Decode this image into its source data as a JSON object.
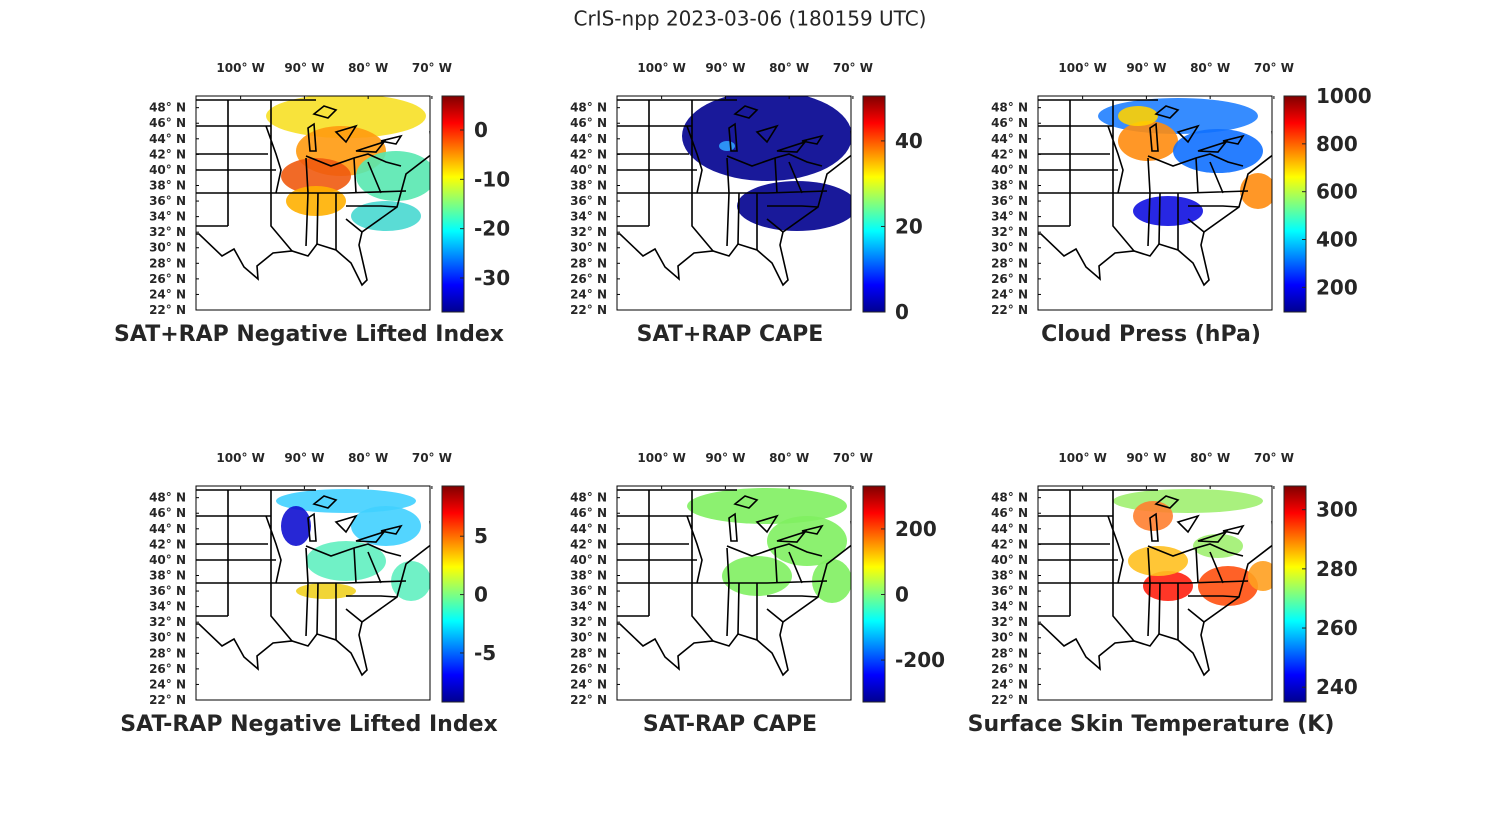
{
  "title": "CrIS-npp 2023-03-06 (180159 UTC)",
  "map": {
    "xlim": [
      -107,
      -70.3
    ],
    "ylim": [
      22,
      49.5
    ],
    "lon_ticks": [
      {
        "value": -100,
        "label": "100° W"
      },
      {
        "value": -90,
        "label": "90° W"
      },
      {
        "value": -80,
        "label": "80° W"
      },
      {
        "value": -70,
        "label": "70° W"
      }
    ],
    "lat_ticks": [
      {
        "value": 48,
        "label": "48° N"
      },
      {
        "value": 46,
        "label": "46° N"
      },
      {
        "value": 44,
        "label": "44° N"
      },
      {
        "value": 42,
        "label": "42° N"
      },
      {
        "value": 40,
        "label": "40° N"
      },
      {
        "value": 38,
        "label": "38° N"
      },
      {
        "value": 36,
        "label": "36° N"
      },
      {
        "value": 34,
        "label": "34° N"
      },
      {
        "value": 32,
        "label": "32° N"
      },
      {
        "value": 30,
        "label": "30° N"
      },
      {
        "value": 28,
        "label": "28° N"
      },
      {
        "value": 26,
        "label": "26° N"
      },
      {
        "value": 24,
        "label": "24° N"
      },
      {
        "value": 22,
        "label": "22° N"
      }
    ]
  },
  "panels": [
    {
      "title": "SAT+RAP Negative Lifted Index",
      "clim": [
        -36.9,
        6.9
      ],
      "cticks": [
        0,
        -10,
        -20,
        -30
      ]
    },
    {
      "title": "SAT+RAP CAPE",
      "clim": [
        0,
        50.5
      ],
      "cticks": [
        40,
        20,
        0
      ]
    },
    {
      "title": "Cloud Press (hPa)",
      "clim": [
        97,
        1000
      ],
      "cticks": [
        1000,
        800,
        600,
        400,
        200
      ]
    },
    {
      "title": "SAT-RAP Negative Lifted Index",
      "clim": [
        -9.2,
        9.3
      ],
      "cticks": [
        5,
        0,
        -5
      ]
    },
    {
      "title": "SAT-RAP CAPE",
      "clim": [
        -328,
        331
      ],
      "cticks": [
        200,
        0,
        -200
      ]
    },
    {
      "title": "Surface Skin Temperature (K)",
      "clim": [
        235,
        308
      ],
      "cticks": [
        300,
        280,
        260,
        240
      ]
    }
  ]
}
